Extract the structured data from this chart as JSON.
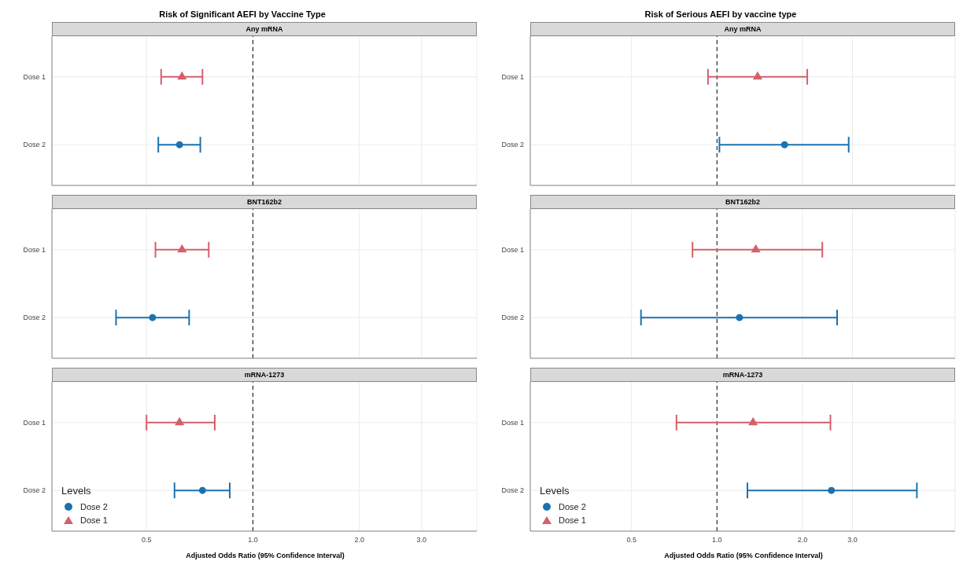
{
  "chart_data": [
    {
      "type": "scatter",
      "title": "Risk of Significant AEFI by Vaccine Type",
      "subtitle": "Any mRNA",
      "orientation": "horizontal",
      "categories": [
        "Dose 1",
        "Dose 2"
      ],
      "log": "x",
      "xlim": [
        0.27,
        4.3
      ],
      "xticks": [
        {
          "value": 0.5,
          "label": null
        },
        {
          "value": 1,
          "label": null
        },
        {
          "value": 2,
          "label": null
        },
        {
          "value": 3,
          "label": null
        }
      ],
      "tick_labels": "y",
      "grid": true,
      "legend": false,
      "ref_lines": [
        {
          "axis": "x",
          "value": 1,
          "color": "#000000",
          "line_style": "dashed"
        }
      ],
      "series": [
        {
          "color": "#1a72b0",
          "marker": "circle",
          "values": [
            null,
            0.62
          ],
          "errors": [
            null,
            [
              0.54,
              0.71
            ]
          ]
        },
        {
          "color": "#d4606a",
          "marker": "triangle",
          "values": [
            0.63,
            null
          ],
          "errors": [
            [
              0.55,
              0.72
            ],
            null
          ]
        }
      ]
    },
    {
      "type": "scatter",
      "subtitle": "BNT162b2",
      "orientation": "horizontal",
      "categories": [
        "Dose 1",
        "Dose 2"
      ],
      "log": "x",
      "xlim": [
        0.27,
        4.3
      ],
      "xticks": [
        {
          "value": 0.5,
          "label": null
        },
        {
          "value": 1,
          "label": null
        },
        {
          "value": 2,
          "label": null
        },
        {
          "value": 3,
          "label": null
        }
      ],
      "tick_labels": "y",
      "grid": true,
      "legend": false,
      "ref_lines": [
        {
          "axis": "x",
          "value": 1,
          "color": "#000000",
          "line_style": "dashed"
        }
      ],
      "series": [
        {
          "color": "#1a72b0",
          "marker": "circle",
          "values": [
            null,
            0.52
          ],
          "errors": [
            null,
            [
              0.41,
              0.66
            ]
          ]
        },
        {
          "color": "#d4606a",
          "marker": "triangle",
          "values": [
            0.63,
            null
          ],
          "errors": [
            [
              0.53,
              0.75
            ],
            null
          ]
        }
      ]
    },
    {
      "type": "scatter",
      "subtitle": "mRNA-1273",
      "xlabel": "Adjusted Odds Ratio (95% Confidence Interval)",
      "orientation": "horizontal",
      "categories": [
        "Dose 1",
        "Dose 2"
      ],
      "log": "x",
      "xlim": [
        0.27,
        4.3
      ],
      "xticks": [
        0.5,
        {
          "value": 1,
          "label": "1.0"
        },
        {
          "value": 2,
          "label": "2.0"
        },
        {
          "value": 3,
          "label": "3.0"
        }
      ],
      "grid": true,
      "legend": "bottom left",
      "legend_title": "Levels",
      "ref_lines": [
        {
          "axis": "x",
          "value": 1,
          "color": "#000000",
          "line_style": "dashed"
        }
      ],
      "series": [
        {
          "name": "Dose 2",
          "color": "#1a72b0",
          "marker": "circle",
          "values": [
            null,
            0.72
          ],
          "errors": [
            null,
            [
              0.6,
              0.86
            ]
          ]
        },
        {
          "name": "Dose 1",
          "color": "#d4606a",
          "marker": "triangle",
          "values": [
            0.62,
            null
          ],
          "errors": [
            [
              0.5,
              0.78
            ],
            null
          ]
        }
      ]
    },
    {
      "type": "scatter",
      "title": "Risk of Serious AEFI by vaccine type",
      "subtitle": "Any mRNA",
      "orientation": "horizontal",
      "categories": [
        "Dose 1",
        "Dose 2"
      ],
      "log": "x",
      "xlim": [
        0.22,
        6.9
      ],
      "xticks": [
        {
          "value": 0.5,
          "label": null
        },
        {
          "value": 1,
          "label": null
        },
        {
          "value": 2,
          "label": null
        },
        {
          "value": 3,
          "label": null
        }
      ],
      "tick_labels": "y",
      "grid": true,
      "legend": false,
      "ref_lines": [
        {
          "axis": "x",
          "value": 1,
          "color": "#000000",
          "line_style": "dashed"
        }
      ],
      "series": [
        {
          "color": "#1a72b0",
          "marker": "circle",
          "values": [
            null,
            1.73
          ],
          "errors": [
            null,
            [
              1.02,
              2.91
            ]
          ]
        },
        {
          "color": "#d4606a",
          "marker": "triangle",
          "values": [
            1.39,
            null
          ],
          "errors": [
            [
              0.93,
              2.08
            ],
            null
          ]
        }
      ]
    },
    {
      "type": "scatter",
      "subtitle": "BNT162b2",
      "orientation": "horizontal",
      "categories": [
        "Dose 1",
        "Dose 2"
      ],
      "log": "x",
      "xlim": [
        0.22,
        6.9
      ],
      "xticks": [
        {
          "value": 0.5,
          "label": null
        },
        {
          "value": 1,
          "label": null
        },
        {
          "value": 2,
          "label": null
        },
        {
          "value": 3,
          "label": null
        }
      ],
      "tick_labels": "y",
      "grid": true,
      "legend": false,
      "ref_lines": [
        {
          "axis": "x",
          "value": 1,
          "color": "#000000",
          "line_style": "dashed"
        }
      ],
      "series": [
        {
          "color": "#1a72b0",
          "marker": "circle",
          "values": [
            null,
            1.2
          ],
          "errors": [
            null,
            [
              0.54,
              2.65
            ]
          ]
        },
        {
          "color": "#d4606a",
          "marker": "triangle",
          "values": [
            1.37,
            null
          ],
          "errors": [
            [
              0.82,
              2.35
            ],
            null
          ]
        }
      ]
    },
    {
      "type": "scatter",
      "subtitle": "mRNA-1273",
      "xlabel": "Adjusted Odds Ratio (95% Confidence Interval)",
      "orientation": "horizontal",
      "categories": [
        "Dose 1",
        "Dose 2"
      ],
      "log": "x",
      "xlim": [
        0.22,
        6.9
      ],
      "xticks": [
        0.5,
        {
          "value": 1,
          "label": "1.0"
        },
        {
          "value": 2,
          "label": "2.0"
        },
        {
          "value": 3,
          "label": "3.0"
        }
      ],
      "grid": true,
      "legend": "bottom left",
      "legend_title": "Levels",
      "ref_lines": [
        {
          "axis": "x",
          "value": 1,
          "color": "#000000",
          "line_style": "dashed"
        }
      ],
      "series": [
        {
          "name": "Dose 2",
          "color": "#1a72b0",
          "marker": "circle",
          "values": [
            null,
            2.53
          ],
          "errors": [
            null,
            [
              1.28,
              5.06
            ]
          ]
        },
        {
          "name": "Dose 1",
          "color": "#d4606a",
          "marker": "triangle",
          "values": [
            1.34,
            null
          ],
          "errors": [
            [
              0.72,
              2.51
            ],
            null
          ]
        }
      ]
    }
  ]
}
